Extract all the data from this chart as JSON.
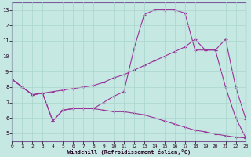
{
  "xlabel": "Windchill (Refroidissement éolien,°C)",
  "bg_color": "#c5e8e2",
  "line_color": "#993399",
  "xlim": [
    0,
    23
  ],
  "ylim": [
    4.5,
    13.5
  ],
  "xticks": [
    0,
    1,
    2,
    3,
    4,
    5,
    6,
    7,
    8,
    9,
    10,
    11,
    12,
    13,
    14,
    15,
    16,
    17,
    18,
    19,
    20,
    21,
    22,
    23
  ],
  "yticks": [
    5,
    6,
    7,
    8,
    9,
    10,
    11,
    12,
    13
  ],
  "line1_x": [
    0,
    1,
    2,
    3,
    4,
    5,
    6,
    7,
    8,
    9,
    10,
    11,
    12,
    13,
    14,
    15,
    16,
    17,
    18,
    19,
    20,
    21,
    22,
    23
  ],
  "line1_y": [
    8.5,
    8.0,
    7.5,
    7.6,
    7.7,
    7.8,
    7.9,
    8.0,
    8.1,
    8.3,
    8.6,
    8.8,
    9.1,
    9.4,
    9.7,
    10.0,
    10.3,
    10.6,
    11.1,
    10.4,
    10.4,
    11.1,
    8.0,
    5.9
  ],
  "line2_x": [
    0,
    1,
    2,
    3,
    4,
    5,
    6,
    7,
    8,
    9,
    10,
    11,
    12,
    13,
    14,
    15,
    16,
    17,
    18,
    19,
    20,
    21,
    22,
    23
  ],
  "line2_y": [
    8.5,
    8.0,
    7.5,
    7.6,
    5.8,
    6.5,
    6.6,
    6.6,
    6.6,
    7.0,
    7.4,
    7.7,
    10.5,
    12.7,
    13.0,
    13.0,
    13.0,
    12.8,
    10.4,
    10.4,
    10.4,
    8.0,
    6.0,
    4.7
  ],
  "line3_x": [
    0,
    1,
    2,
    3,
    4,
    5,
    6,
    7,
    8,
    9,
    10,
    11,
    12,
    13,
    14,
    15,
    16,
    17,
    18,
    19,
    20,
    21,
    22,
    23
  ],
  "line3_y": [
    8.5,
    8.0,
    7.5,
    7.6,
    5.8,
    6.5,
    6.6,
    6.6,
    6.6,
    6.5,
    6.4,
    6.4,
    6.3,
    6.2,
    6.0,
    5.8,
    5.6,
    5.4,
    5.2,
    5.1,
    4.95,
    4.85,
    4.75,
    4.7
  ],
  "grid_color": "#a8d4cc"
}
